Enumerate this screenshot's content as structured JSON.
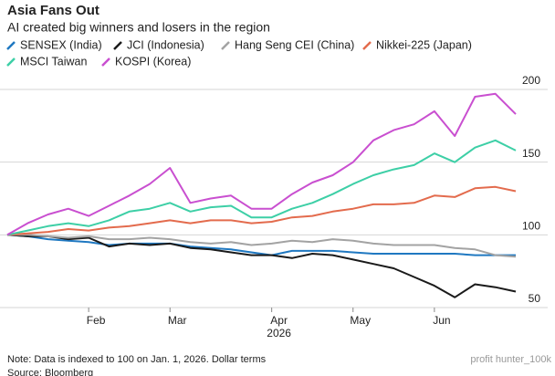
{
  "chart_data": {
    "type": "line",
    "title": "Asia Fans Out",
    "subtitle": "AI created big winners and losers in the region",
    "categories": [
      null,
      null,
      null,
      null,
      "Feb",
      null,
      null,
      null,
      "Mar",
      null,
      null,
      null,
      null,
      "Apr",
      null,
      null,
      null,
      "May",
      null,
      null,
      null,
      "Jun",
      null,
      null,
      null,
      null
    ],
    "year_label": "2026",
    "series": [
      {
        "name": "SENSEX (India)",
        "color": "#1f78c1",
        "values": [
          100,
          99,
          97,
          96,
          95,
          93,
          94,
          94,
          94,
          92,
          91,
          90,
          88,
          86,
          89,
          89,
          89,
          88,
          87,
          87,
          87,
          87,
          87,
          86,
          86,
          86
        ]
      },
      {
        "name": "JCI (Indonesia)",
        "color": "#1a1a1a",
        "values": [
          100,
          99,
          99,
          97,
          98,
          92,
          94,
          93,
          94,
          91,
          90,
          88,
          86,
          86,
          84,
          87,
          86,
          83,
          80,
          77,
          71,
          65,
          57,
          66,
          64,
          61
        ]
      },
      {
        "name": "Hang Seng CEI (China)",
        "color": "#a3a3a3",
        "values": [
          100,
          100,
          99,
          98,
          99,
          97,
          97,
          98,
          97,
          95,
          94,
          95,
          93,
          94,
          96,
          95,
          97,
          96,
          94,
          93,
          93,
          93,
          91,
          90,
          86,
          85
        ]
      },
      {
        "name": "Nikkei-225 (Japan)",
        "color": "#e36b4d",
        "values": [
          100,
          101,
          102,
          104,
          103,
          105,
          106,
          108,
          110,
          108,
          110,
          110,
          108,
          109,
          112,
          113,
          116,
          118,
          121,
          121,
          122,
          127,
          126,
          132,
          133,
          130
        ]
      },
      {
        "name": "MSCI Taiwan",
        "color": "#3dcfa6",
        "values": [
          100,
          103,
          106,
          108,
          106,
          110,
          116,
          118,
          122,
          116,
          119,
          120,
          112,
          112,
          118,
          122,
          128,
          135,
          141,
          145,
          148,
          156,
          150,
          160,
          165,
          158
        ]
      },
      {
        "name": "KOSPI (Korea)",
        "color": "#c94fd0",
        "values": [
          100,
          108,
          114,
          118,
          113,
          120,
          127,
          135,
          146,
          122,
          125,
          127,
          118,
          118,
          128,
          136,
          141,
          150,
          165,
          172,
          176,
          185,
          168,
          195,
          197,
          183
        ]
      }
    ],
    "ylim": [
      50,
      200
    ],
    "yticks": [
      50,
      100,
      150,
      200
    ],
    "grid": true,
    "note": "Note: Data is indexed to 100 on Jan. 1, 2026. Dollar terms",
    "source": "Source: Bloomberg",
    "watermark": "profit hunter_100k"
  }
}
